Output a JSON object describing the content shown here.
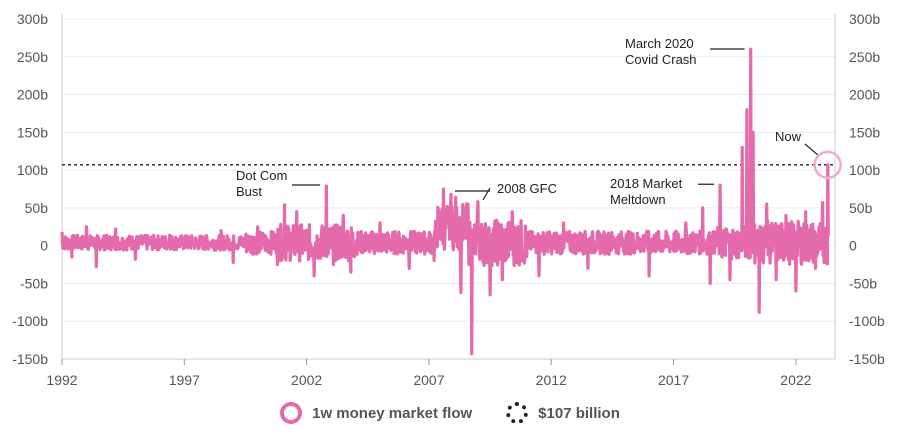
{
  "chart_data": {
    "type": "line",
    "title": "",
    "xlabel": "",
    "ylabel": "",
    "xlim": [
      1992,
      2023.6
    ],
    "ylim": [
      -150,
      300
    ],
    "x_ticks": [
      "1992",
      "1997",
      "2002",
      "2007",
      "2012",
      "2017",
      "2022"
    ],
    "y_ticks": [
      "300b",
      "250b",
      "200b",
      "150b",
      "100b",
      "50b",
      "0",
      "-50b",
      "-100b",
      "-150b"
    ],
    "grid": true,
    "legend_placement": "bottom-center",
    "series": [
      {
        "name": "1w money market flow",
        "color": "#e46aab",
        "spikes": [
          {
            "x": 1992.0,
            "y": 18
          },
          {
            "x": 1992.4,
            "y": -15
          },
          {
            "x": 1993.0,
            "y": 25
          },
          {
            "x": 1993.4,
            "y": -28
          },
          {
            "x": 1994.2,
            "y": 22
          },
          {
            "x": 1995.0,
            "y": -18
          },
          {
            "x": 1996.4,
            "y": 14
          },
          {
            "x": 1998.5,
            "y": 20
          },
          {
            "x": 1999.0,
            "y": -22
          },
          {
            "x": 2000.0,
            "y": 25
          },
          {
            "x": 2000.8,
            "y": -25
          },
          {
            "x": 2001.1,
            "y": 54
          },
          {
            "x": 2001.6,
            "y": 45
          },
          {
            "x": 2002.3,
            "y": -40
          },
          {
            "x": 2002.8,
            "y": 79
          },
          {
            "x": 2003.1,
            "y": -25
          },
          {
            "x": 2003.5,
            "y": 40
          },
          {
            "x": 2003.8,
            "y": -35
          },
          {
            "x": 2005.0,
            "y": 30
          },
          {
            "x": 2006.2,
            "y": -30
          },
          {
            "x": 2007.6,
            "y": 75
          },
          {
            "x": 2007.9,
            "y": 68
          },
          {
            "x": 2008.1,
            "y": 64
          },
          {
            "x": 2008.3,
            "y": -62
          },
          {
            "x": 2008.6,
            "y": 55
          },
          {
            "x": 2008.75,
            "y": -143
          },
          {
            "x": 2009.0,
            "y": 58
          },
          {
            "x": 2009.5,
            "y": -65
          },
          {
            "x": 2010.0,
            "y": -45
          },
          {
            "x": 2010.4,
            "y": 45
          },
          {
            "x": 2011.5,
            "y": -40
          },
          {
            "x": 2012.5,
            "y": 30
          },
          {
            "x": 2013.5,
            "y": -30
          },
          {
            "x": 2016.0,
            "y": -40
          },
          {
            "x": 2017.5,
            "y": 30
          },
          {
            "x": 2018.2,
            "y": 50
          },
          {
            "x": 2018.5,
            "y": -50
          },
          {
            "x": 2018.9,
            "y": 80
          },
          {
            "x": 2019.3,
            "y": -45
          },
          {
            "x": 2019.8,
            "y": 130
          },
          {
            "x": 2020.0,
            "y": 180
          },
          {
            "x": 2020.15,
            "y": 260
          },
          {
            "x": 2020.25,
            "y": 150
          },
          {
            "x": 2020.5,
            "y": -88
          },
          {
            "x": 2020.8,
            "y": 55
          },
          {
            "x": 2021.2,
            "y": -45
          },
          {
            "x": 2021.6,
            "y": 40
          },
          {
            "x": 2022.0,
            "y": -60
          },
          {
            "x": 2022.4,
            "y": 45
          },
          {
            "x": 2022.8,
            "y": -30
          },
          {
            "x": 2023.1,
            "y": 57
          },
          {
            "x": 2023.3,
            "y": 107
          }
        ]
      },
      {
        "name": "$107 billion",
        "color": "#222222",
        "value": 107
      }
    ],
    "annotations": [
      {
        "lines": [
          "Dot Com",
          "Bust"
        ],
        "x": 2002.8,
        "y": 79
      },
      {
        "lines": [
          "2008 GFC"
        ],
        "x": 2008.5,
        "y": 75
      },
      {
        "lines": [
          "2018 Market",
          "Meltdown"
        ],
        "x": 2018.9,
        "y": 80
      },
      {
        "lines": [
          "March 2020",
          "Covid Crash"
        ],
        "x": 2020.15,
        "y": 260
      },
      {
        "lines": [
          "Now"
        ],
        "x": 2023.3,
        "y": 107
      }
    ]
  }
}
